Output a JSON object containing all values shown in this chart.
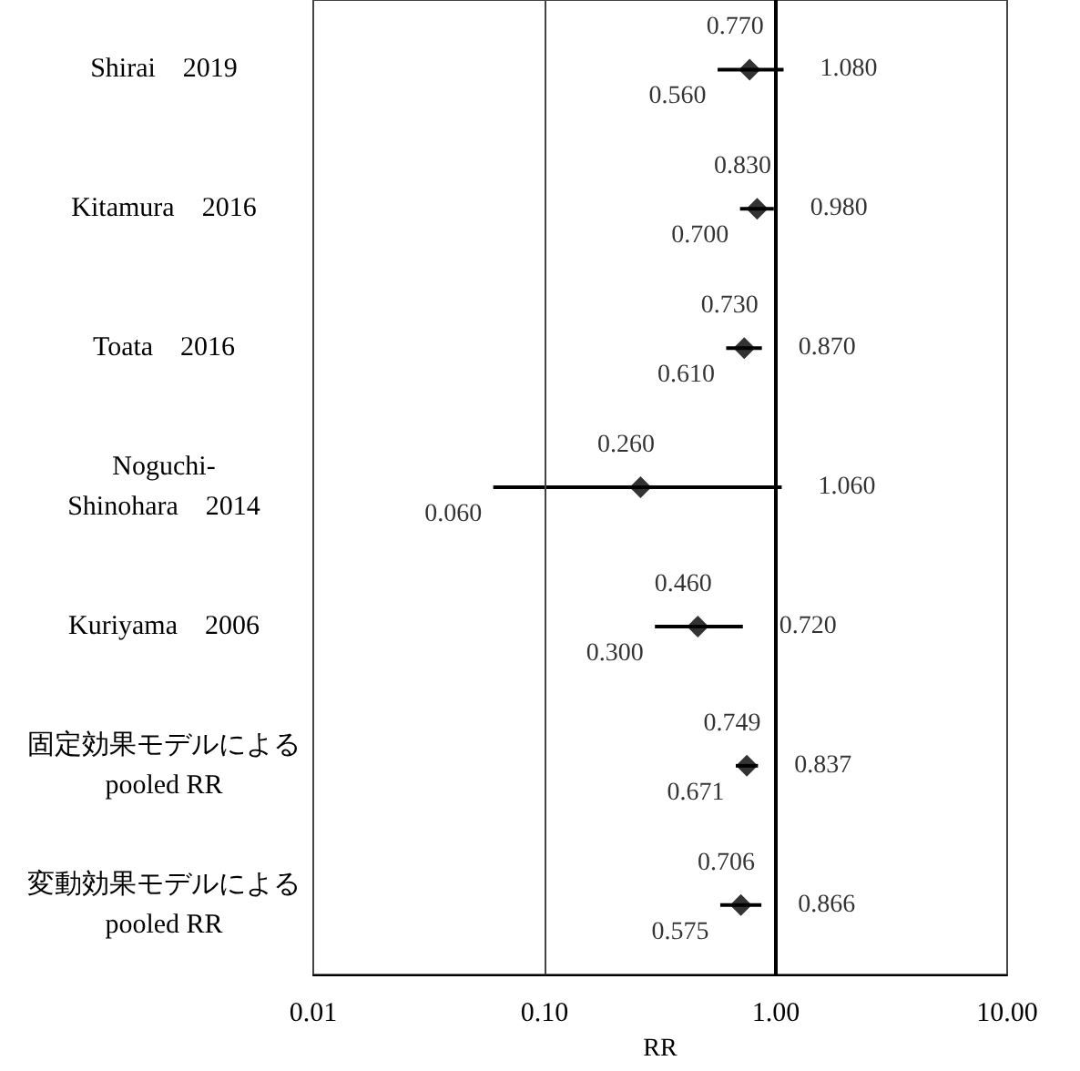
{
  "chart_data": {
    "type": "scatter",
    "orientation": "horizontal",
    "xlabel": "RR",
    "categories": [
      "Shirai　2019",
      "Kitamura　2016",
      "Toata　2016",
      "Noguchi-\nShinohara　2014",
      "Kuriyama　2006",
      "固定効果モデルによる\npooled RR",
      "変動効果モデルによる\npooled RR"
    ],
    "values": [
      0.77,
      0.83,
      0.73,
      0.26,
      0.46,
      0.749,
      0.706
    ],
    "value_labels": [
      "0.770",
      "0.830",
      "0.730",
      "0.260",
      "0.460",
      "0.749",
      "0.706"
    ],
    "errors": [
      [
        0.56,
        1.08
      ],
      [
        0.7,
        0.98
      ],
      [
        0.61,
        0.87
      ],
      [
        0.06,
        1.06
      ],
      [
        0.3,
        0.72
      ],
      [
        0.671,
        0.837
      ],
      [
        0.575,
        0.866
      ]
    ],
    "annotations": [
      {
        "text": "0.560",
        "x": 0.56,
        "y": "Shirai　2019"
      },
      {
        "text": "1.080",
        "x": 1.08,
        "y": "Shirai　2019"
      },
      {
        "text": "0.700",
        "x": 0.7,
        "y": "Kitamura　2016"
      },
      {
        "text": "0.980",
        "x": 0.98,
        "y": "Kitamura　2016"
      },
      {
        "text": "0.610",
        "x": 0.61,
        "y": "Toata　2016"
      },
      {
        "text": "0.870",
        "x": 0.87,
        "y": "Toata　2016"
      },
      {
        "text": "0.060",
        "x": 0.06,
        "y": "Noguchi-\nShinohara　2014"
      },
      {
        "text": "1.060",
        "x": 1.06,
        "y": "Noguchi-\nShinohara　2014"
      },
      {
        "text": "0.300",
        "x": 0.3,
        "y": "Kuriyama　2006"
      },
      {
        "text": "0.720",
        "x": 0.72,
        "y": "Kuriyama　2006"
      },
      {
        "text": "0.671",
        "x": 0.671,
        "y": "固定効果モデルによる\npooled RR"
      },
      {
        "text": "0.837",
        "x": 0.837,
        "y": "固定効果モデルによる\npooled RR"
      },
      {
        "text": "0.575",
        "x": 0.575,
        "y": "変動効果モデルによる\npooled RR"
      },
      {
        "text": "0.866",
        "x": 0.866,
        "y": "変動効果モデルによる\npooled RR"
      }
    ],
    "color": "#000000",
    "marker": "diamond",
    "log": "x",
    "xlim": [
      0.01,
      10
    ],
    "xticks": [
      {
        "value": 0.01,
        "label": "0.01"
      },
      {
        "value": 0.1,
        "label": "0.10"
      },
      {
        "value": 1,
        "label": "1.00"
      },
      {
        "value": 10,
        "label": "10.00"
      }
    ],
    "ref_lines": [
      {
        "axis": "x",
        "value": 0.1,
        "color": "#444444"
      },
      {
        "axis": "x",
        "value": 1,
        "color": "#000000"
      }
    ]
  }
}
